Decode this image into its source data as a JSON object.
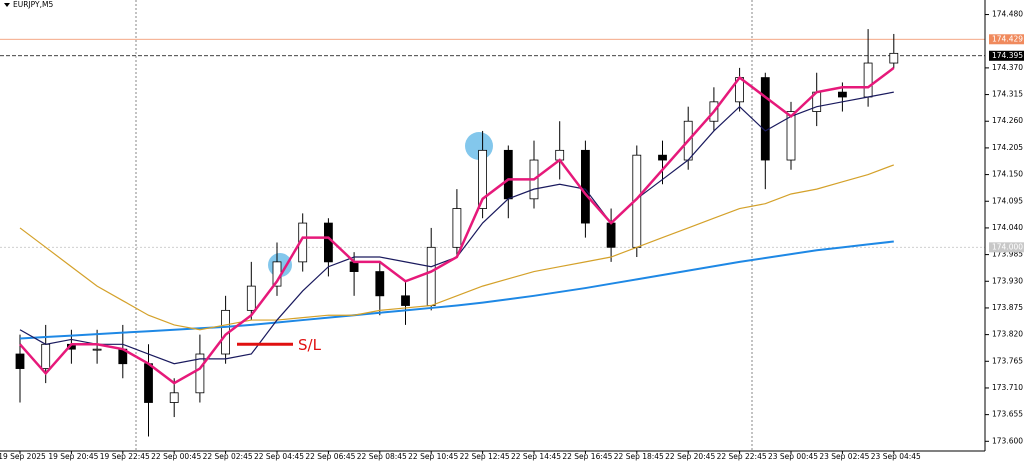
{
  "chart_data": {
    "type": "candlestick",
    "title": "EURJPY,M5",
    "categories": [
      "19 Sep 2025",
      null,
      "19 Sep 20:45",
      null,
      "19 Sep 22:45",
      null,
      "22 Sep 00:45",
      null,
      "22 Sep 02:45",
      null,
      "22 Sep 04:45",
      null,
      "22 Sep 06:45",
      null,
      "22 Sep 08:45",
      null,
      "22 Sep 10:45",
      null,
      "22 Sep 12:45",
      null,
      "22 Sep 14:45",
      null,
      "22 Sep 16:45",
      null,
      "22 Sep 18:45",
      null,
      "22 Sep 20:45",
      null,
      "22 Sep 22:45",
      null,
      "23 Sep 00:45",
      null,
      "23 Sep 02:45",
      null,
      "23 Sep 04:45"
    ],
    "open": [
      173.78,
      173.75,
      173.8,
      173.79,
      173.79,
      173.76,
      173.68,
      173.7,
      173.78,
      173.87,
      173.92,
      173.97,
      174.05,
      173.97,
      173.95,
      173.9,
      173.88,
      174.0,
      174.08,
      174.2,
      174.1,
      174.18,
      174.2,
      174.05,
      174.0,
      174.19,
      174.18,
      174.26,
      174.3,
      174.35,
      174.18,
      174.28,
      174.32,
      174.31,
      174.38
    ],
    "high": [
      173.82,
      173.84,
      173.83,
      173.83,
      173.84,
      173.8,
      173.73,
      173.82,
      173.9,
      173.97,
      174.01,
      174.07,
      174.06,
      173.99,
      173.97,
      173.93,
      174.04,
      174.12,
      174.24,
      174.21,
      174.22,
      174.26,
      174.22,
      174.08,
      174.21,
      174.22,
      174.29,
      174.33,
      174.37,
      174.36,
      174.3,
      174.36,
      174.34,
      174.45,
      174.44
    ],
    "low": [
      173.68,
      173.72,
      173.76,
      173.76,
      173.73,
      173.61,
      173.65,
      173.68,
      173.76,
      173.85,
      173.9,
      173.95,
      173.94,
      173.9,
      173.86,
      173.84,
      173.87,
      173.98,
      174.06,
      174.06,
      174.08,
      174.14,
      174.02,
      173.97,
      173.98,
      174.13,
      174.16,
      174.24,
      174.28,
      174.12,
      174.16,
      174.25,
      174.28,
      174.29,
      174.37
    ],
    "close": [
      173.75,
      173.8,
      173.79,
      173.79,
      173.76,
      173.68,
      173.7,
      173.78,
      173.87,
      173.92,
      173.97,
      174.05,
      173.97,
      173.95,
      173.9,
      173.88,
      174.0,
      174.08,
      174.2,
      174.1,
      174.18,
      174.2,
      174.05,
      174.0,
      174.19,
      174.18,
      174.26,
      174.3,
      174.35,
      174.18,
      174.28,
      174.32,
      174.31,
      174.38,
      174.4
    ],
    "lines": [
      {
        "color": "#1e88e5",
        "values": [
          173.812,
          173.815,
          173.818,
          173.821,
          173.824,
          173.827,
          173.83,
          173.833,
          173.836,
          173.84,
          173.845,
          173.85,
          173.855,
          173.86,
          173.865,
          173.87,
          173.875,
          173.88,
          173.886,
          173.893,
          173.9,
          173.908,
          173.916,
          173.925,
          173.934,
          173.943,
          173.952,
          173.961,
          173.97,
          173.978,
          173.986,
          173.994,
          174.0,
          174.006,
          174.012
        ]
      },
      {
        "color": "#d4a12a",
        "values": [
          174.04,
          174.0,
          173.96,
          173.92,
          173.89,
          173.86,
          173.84,
          173.83,
          173.84,
          173.85,
          173.85,
          173.855,
          173.86,
          173.86,
          173.87,
          173.875,
          173.88,
          173.9,
          173.92,
          173.935,
          173.95,
          173.96,
          173.97,
          173.98,
          174.0,
          174.02,
          174.04,
          174.06,
          174.08,
          174.09,
          174.11,
          174.12,
          174.135,
          174.15,
          174.17
        ]
      },
      {
        "color": "#1a1a5e",
        "values": [
          173.83,
          173.8,
          173.81,
          173.8,
          173.8,
          173.78,
          173.76,
          173.77,
          173.77,
          173.78,
          173.85,
          173.91,
          173.96,
          173.98,
          173.98,
          173.97,
          173.96,
          173.98,
          174.05,
          174.1,
          174.12,
          174.13,
          174.12,
          174.05,
          174.1,
          174.14,
          174.18,
          174.24,
          174.29,
          174.24,
          174.27,
          174.29,
          174.3,
          174.31,
          174.32
        ]
      },
      {
        "color": "#e6197a",
        "values": [
          173.8,
          173.74,
          173.8,
          173.8,
          173.79,
          173.76,
          173.72,
          173.75,
          173.82,
          173.86,
          173.93,
          174.02,
          174.02,
          173.97,
          173.97,
          173.93,
          173.95,
          173.98,
          174.1,
          174.14,
          174.14,
          174.18,
          174.11,
          174.05,
          174.1,
          174.16,
          174.22,
          174.28,
          174.35,
          174.31,
          174.27,
          174.32,
          174.33,
          174.33,
          174.37
        ]
      }
    ],
    "hlines": [
      {
        "value": 174.429,
        "color": "#f08a5d",
        "text_color": "#ffffff",
        "style": "solid"
      },
      {
        "value": 174.395,
        "color": "#000000",
        "text_color": "#ffffff",
        "style": "dashed"
      },
      {
        "value": 174,
        "label": "174.000",
        "color": "#c8c8c8",
        "text_color": "#ffffff",
        "style": "dotted"
      }
    ],
    "annotation": {
      "text": "S/L",
      "value": 173.8,
      "color": "#e01010"
    },
    "ylim": [
      173.58,
      174.51
    ],
    "yticks": [
      {
        "value": 173.6,
        "label": "173.600"
      },
      173.655,
      {
        "value": 173.71,
        "label": "173.710"
      },
      173.765,
      {
        "value": 173.82,
        "label": "173.820"
      },
      173.875,
      {
        "value": 173.93,
        "label": "173.930"
      },
      173.985,
      {
        "value": 174.04,
        "label": "174.040"
      },
      174.095,
      {
        "value": 174.15,
        "label": "174.150"
      },
      174.205,
      {
        "value": 174.26,
        "label": "174.260"
      },
      174.315,
      {
        "value": 174.37,
        "label": "174.370"
      },
      {
        "value": 174.48,
        "label": "174.480"
      }
    ]
  }
}
